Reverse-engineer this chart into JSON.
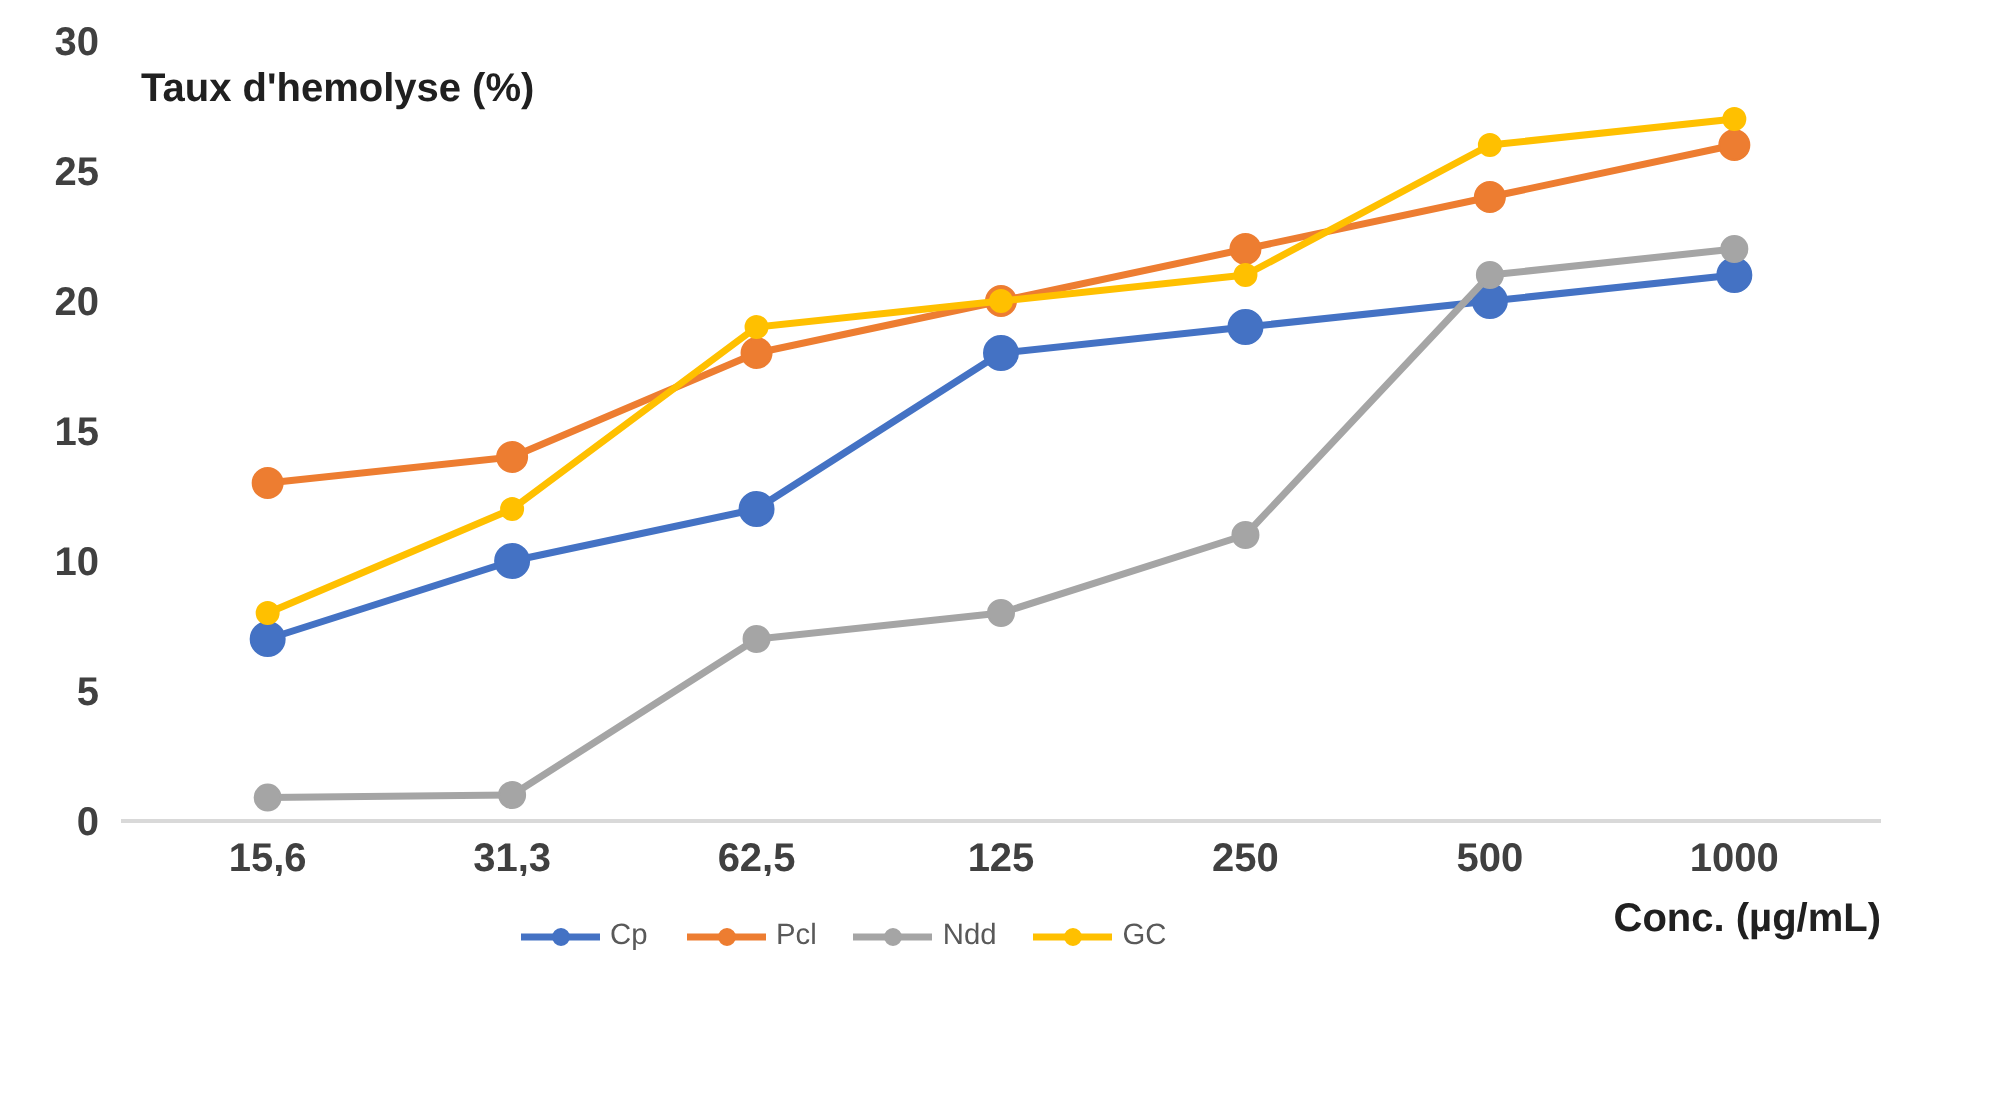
{
  "chart_data": {
    "type": "line",
    "ylabel": "Taux d'hemolyse (%)",
    "xlabel": "Conc. (µg/mL)",
    "categories": [
      "15,6",
      "31,3",
      "62,5",
      "125",
      "250",
      "500",
      "1000"
    ],
    "series": [
      {
        "name": "Cp",
        "color": "#4472c4",
        "values": [
          7,
          10,
          12,
          18,
          19,
          20,
          21
        ]
      },
      {
        "name": "Pcl",
        "color": "#ed7d31",
        "values": [
          13,
          14,
          18,
          20,
          22,
          24,
          26
        ]
      },
      {
        "name": "Ndd",
        "color": "#a5a5a5",
        "values": [
          0.9,
          1.0,
          7,
          8,
          11,
          21,
          22
        ]
      },
      {
        "name": "GC",
        "color": "#ffc000",
        "values": [
          8,
          12,
          19,
          20,
          21,
          26,
          27
        ]
      }
    ],
    "ylim": [
      0,
      30
    ],
    "yticks": [
      0,
      5,
      10,
      15,
      20,
      25,
      30
    ],
    "grid": false,
    "legend": "bottom",
    "marker": "circle",
    "line_style": "solid"
  }
}
